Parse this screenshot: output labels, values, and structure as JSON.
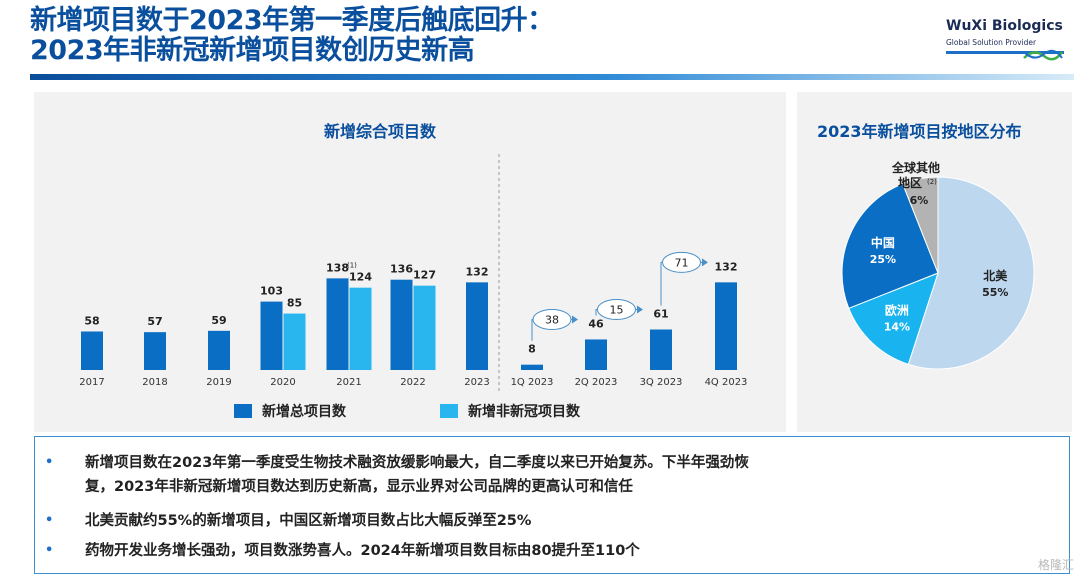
{
  "header": {
    "title_line1": "新增项目数于2023年第一季度后触底回升：",
    "title_line2": "2023年非新冠新增项目数创历史新高",
    "logo_name": "WuXi Biologics",
    "logo_tagline": "Global Solution Provider"
  },
  "colors": {
    "total": "#0b6ec5",
    "non_covid": "#29b6ef",
    "north_america": "#bdd7ee",
    "china": "#0b6ec5",
    "europe": "#19b4f0",
    "other": "#b3b3b3"
  },
  "chart_data": [
    {
      "type": "bar",
      "title": "新增综合项目数",
      "categories": [
        "2017",
        "2018",
        "2019",
        "2020",
        "2021",
        "2022",
        "2023"
      ],
      "series": [
        {
          "name": "新增总项目数",
          "values": [
            58,
            57,
            59,
            103,
            138,
            136,
            132
          ],
          "labels": [
            "58",
            "57",
            "59",
            "103",
            "138",
            "136",
            "132"
          ]
        },
        {
          "name": "新增非新冠项目数",
          "values": [
            null,
            null,
            null,
            85,
            124,
            127,
            null
          ],
          "labels": [
            "",
            "",
            "",
            "85",
            "124",
            "127",
            ""
          ]
        }
      ],
      "annotations": [
        {
          "category": "2021",
          "series": "新增总项目数",
          "text": "(1)"
        }
      ],
      "legend": "bottom"
    },
    {
      "type": "bar",
      "categories": [
        "1Q 2023",
        "2Q 2023",
        "3Q 2023",
        "4Q 2023"
      ],
      "series": [
        {
          "name": "新增总项目数",
          "values": [
            8,
            46,
            61,
            132
          ],
          "labels": [
            "8",
            "46",
            "61",
            "132"
          ]
        }
      ],
      "increments": [
        {
          "to": "2Q 2023",
          "value": 38
        },
        {
          "to": "3Q 2023",
          "value": 15
        },
        {
          "to": "4Q 2023",
          "value": 71
        }
      ],
      "increment_labels": [
        "38",
        "15",
        "71"
      ]
    },
    {
      "type": "pie",
      "title": "2023年新增项目按地区分布",
      "slices": [
        {
          "label": "北美",
          "value": 55,
          "text": "55%",
          "color_key": "north_america"
        },
        {
          "label": "欧洲",
          "value": 14,
          "text": "14%",
          "color_key": "europe"
        },
        {
          "label": "中国",
          "value": 25,
          "text": "25%",
          "color_key": "china"
        },
        {
          "label": "全球其他地区",
          "label_line1": "全球其他",
          "label_line2": "地区",
          "note": "(2)",
          "value": 6,
          "text": "6%",
          "color_key": "other"
        }
      ]
    }
  ],
  "bullets": [
    {
      "line1": "新增项目数在2023年第一季度受生物技术融资放缓影响最大，自二季度以来已开始复苏。下半年强劲恢",
      "line2": "复，2023年非新冠新增项目数达到历史新高，显示业界对公司品牌的更高认可和信任"
    },
    {
      "line1": "北美贡献约55%的新增项目，中国区新增项目数占比大幅反弹至25%"
    },
    {
      "line1": "药物开发业务增长强劲，项目数涨势喜人。2024年新增项目数目标由80提升至110个"
    }
  ],
  "bullet_symbol": "•",
  "watermark": "格隆汇"
}
